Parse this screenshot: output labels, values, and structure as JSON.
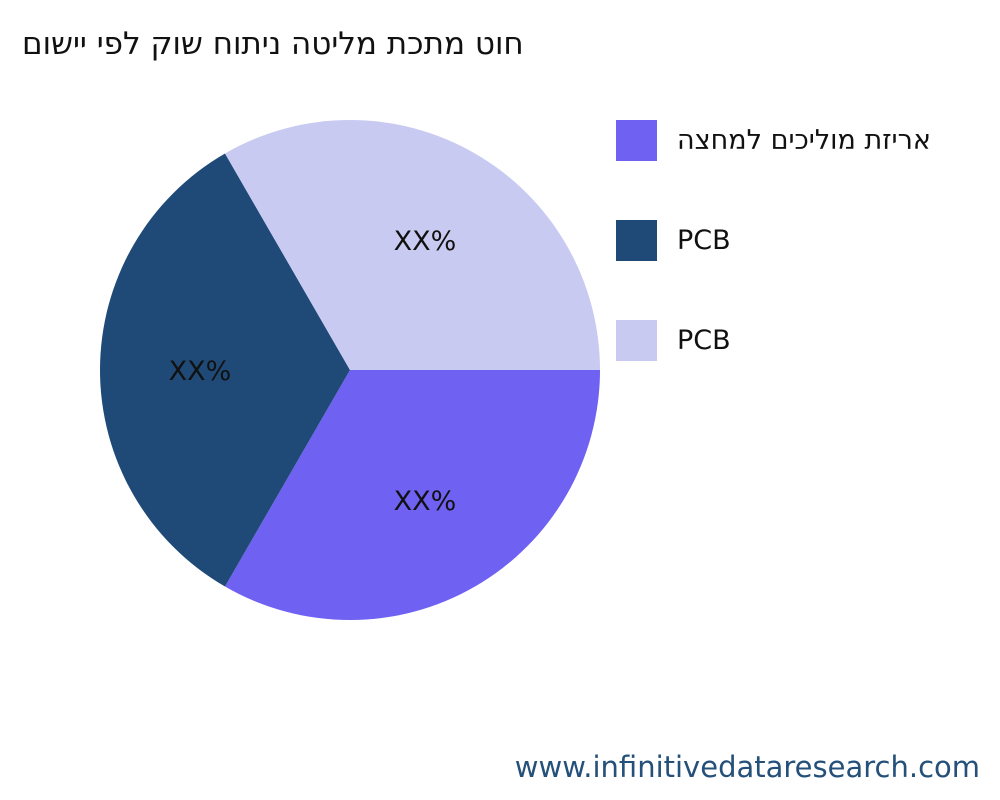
{
  "chart_data": {
    "type": "pie",
    "title": "םושיי יפל קוש חותינ הטילמ תכתמ טוח",
    "slices": [
      {
        "label": "הצחמל םיכילומ תזירא",
        "value": 33.33,
        "data_label": "XX%",
        "color": "#6f61f2"
      },
      {
        "label": "PCB",
        "value": 33.33,
        "data_label": "XX%",
        "color": "#1f4a77"
      },
      {
        "label": "PCB",
        "value": 33.33,
        "data_label": "XX%",
        "color": "#c9caf1"
      }
    ],
    "start_direction": "east",
    "order": "clockwise",
    "legend_position": "right"
  },
  "footer": {
    "source": "www.infinitivedataresearch.com"
  }
}
